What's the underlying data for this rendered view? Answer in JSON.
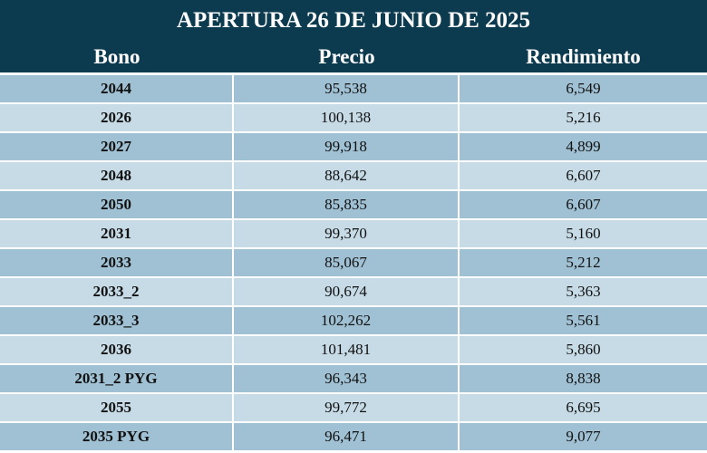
{
  "colors": {
    "header_bg": "#0c3b50",
    "row_dark": "#9fc1d3",
    "row_light": "#c6dbe6"
  },
  "chart_data": {
    "type": "table",
    "title": "APERTURA 26 DE JUNIO DE 2025",
    "columns": [
      "Bono",
      "Precio",
      "Rendimiento"
    ],
    "rows": [
      [
        "2044",
        "95,538",
        "6,549"
      ],
      [
        "2026",
        "100,138",
        "5,216"
      ],
      [
        "2027",
        "99,918",
        "4,899"
      ],
      [
        "2048",
        "88,642",
        "6,607"
      ],
      [
        "2050",
        "85,835",
        "6,607"
      ],
      [
        "2031",
        "99,370",
        "5,160"
      ],
      [
        "2033",
        "85,067",
        "5,212"
      ],
      [
        "2033_2",
        "90,674",
        "5,363"
      ],
      [
        "2033_3",
        "102,262",
        "5,561"
      ],
      [
        "2036",
        "101,481",
        "5,860"
      ],
      [
        "2031_2 PYG",
        "96,343",
        "8,838"
      ],
      [
        "2055",
        "99,772",
        "6,695"
      ],
      [
        "2035 PYG",
        "96,471",
        "9,077"
      ]
    ]
  }
}
